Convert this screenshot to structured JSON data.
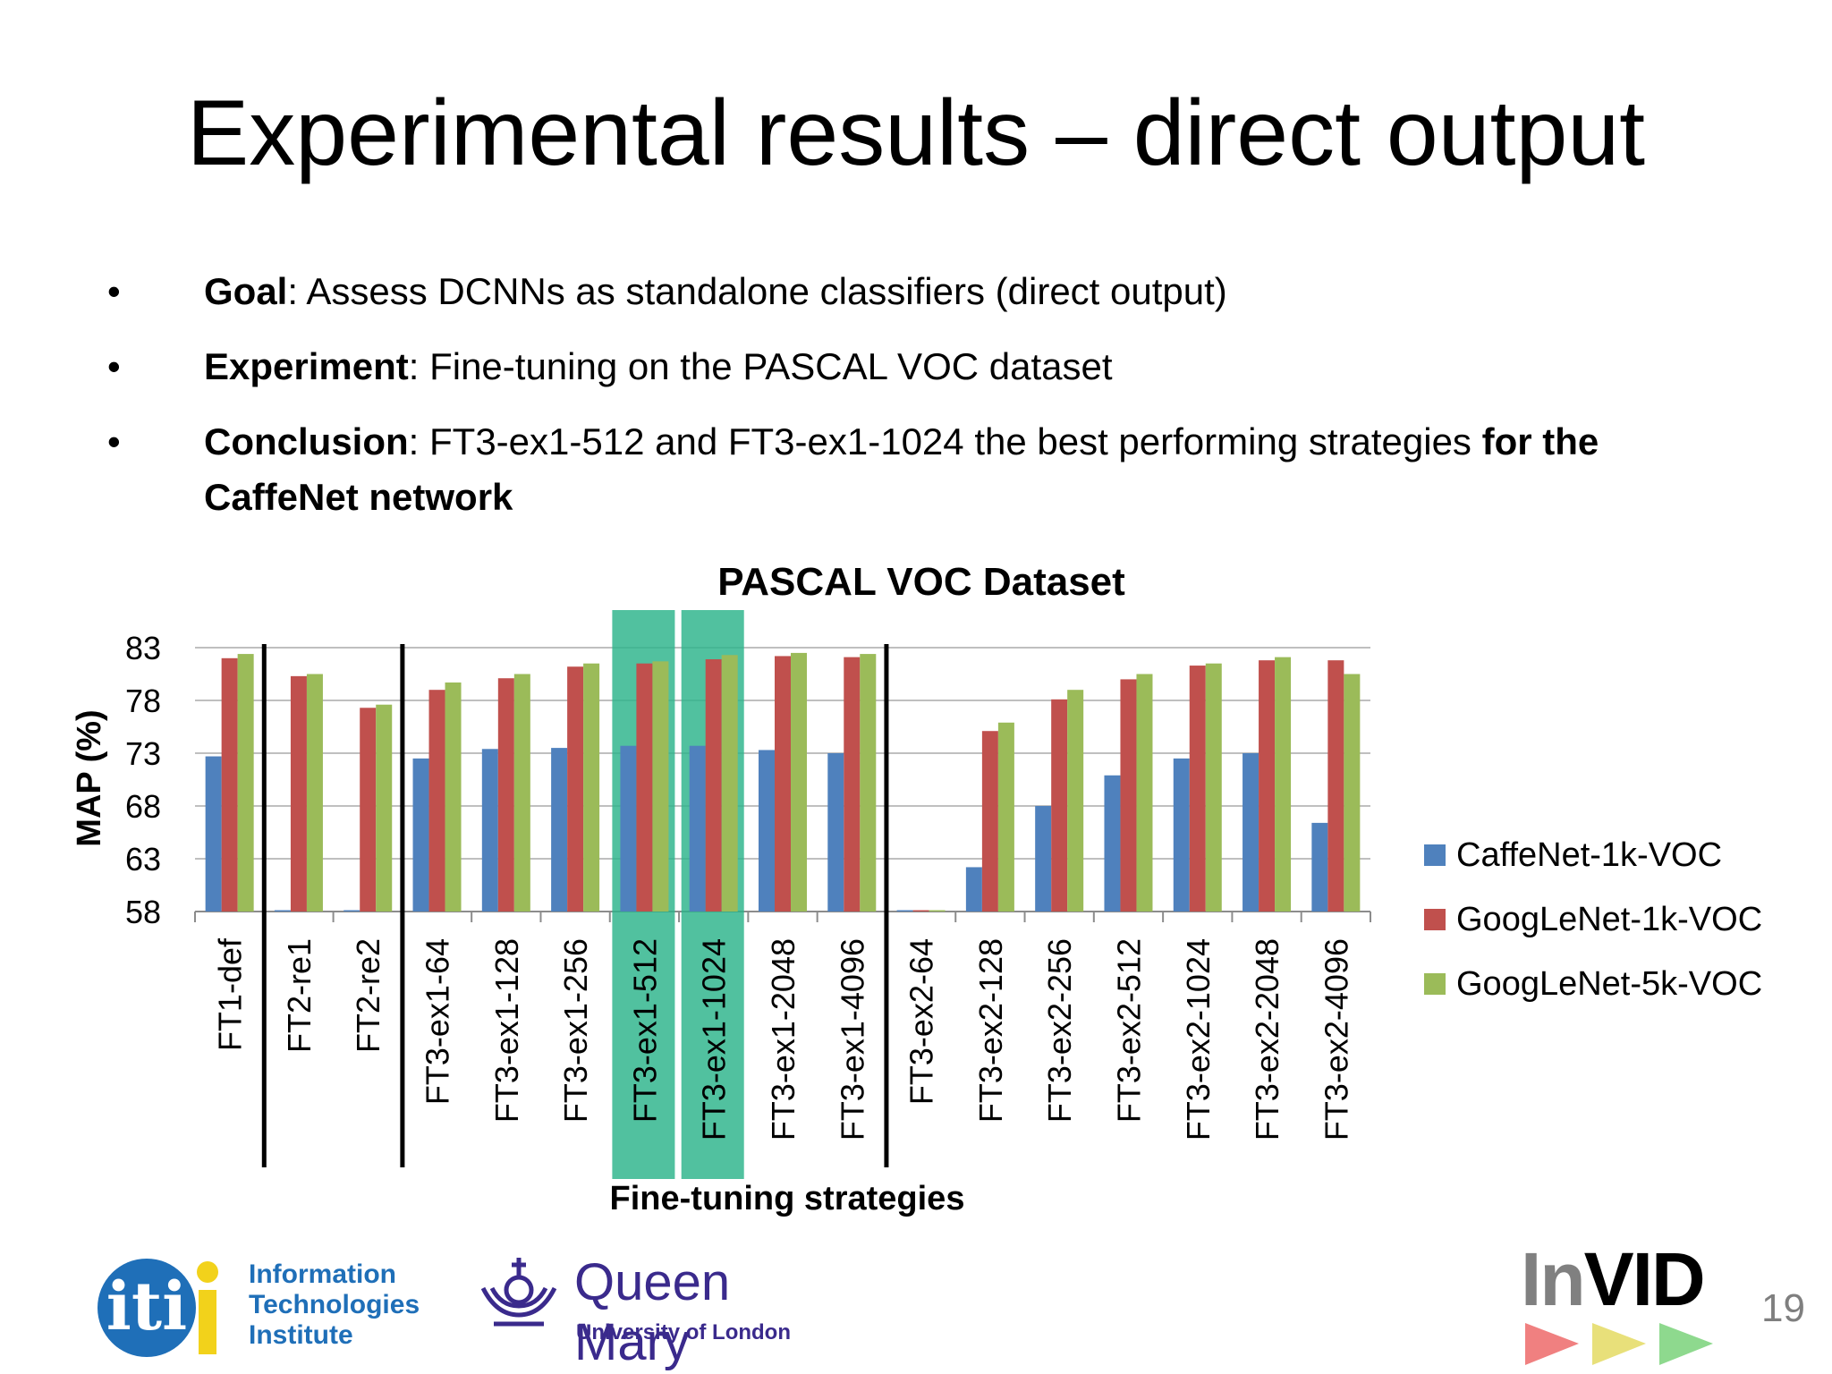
{
  "slide": {
    "title": "Experimental results – direct output",
    "bullets": [
      {
        "bold": "Goal",
        "text": ": Assess DCNNs as standalone classifiers (direct output)",
        "tail_bold": "",
        "line2_bold": ""
      },
      {
        "bold": "Experiment",
        "text": ": Fine-tuning on the PASCAL VOC dataset",
        "tail_bold": "",
        "line2_bold": ""
      },
      {
        "bold": "Conclusion",
        "text": ": FT3-ex1-512 and FT3-ex1-1024 the best performing strategies ",
        "tail_bold": "for the",
        "line2_bold": "CaffeNet network"
      }
    ],
    "bullet_char": "•",
    "page_number": "19"
  },
  "logos": {
    "iti": {
      "mark": "iti",
      "lines": [
        "Information",
        "Technologies",
        "Institute"
      ]
    },
    "qmul": {
      "name": "Queen Mary",
      "sub": "University of London"
    },
    "invid": {
      "text_in": "In",
      "text_vid": "VID"
    }
  },
  "colors": {
    "caffenet": "#4F81BD",
    "googlenet1k": "#C0504D",
    "googlenet5k": "#9BBB59",
    "highlight": "#2BB38A",
    "grid": "#BFBFBF",
    "page_number": "#7F7F7F",
    "iti_blue": "#1F6FB8",
    "iti_yellow": "#F2D21B",
    "qmul_purple": "#3A2A8C",
    "invid_gray": "#808080",
    "invid_red": "#F08080",
    "invid_yellow": "#E8E07A",
    "invid_green": "#8ED98E"
  },
  "chart_data": {
    "type": "bar",
    "title": "PASCAL VOC Dataset",
    "xlabel": "Fine-tuning strategies",
    "ylabel": "MAP (%)",
    "ylim": [
      58,
      83
    ],
    "yticks": [
      58,
      63,
      68,
      73,
      78,
      83
    ],
    "grid": true,
    "legend_position": "right",
    "categories": [
      "FT1-def",
      "FT2-re1",
      "FT2-re2",
      "FT3-ex1-64",
      "FT3-ex1-128",
      "FT3-ex1-256",
      "FT3-ex1-512",
      "FT3-ex1-1024",
      "FT3-ex1-2048",
      "FT3-ex1-4096",
      "FT3-ex2-64",
      "FT3-ex2-128",
      "FT3-ex2-256",
      "FT3-ex2-512",
      "FT3-ex2-1024",
      "FT3-ex2-2048",
      "FT3-ex2-4096"
    ],
    "series": [
      {
        "name": "CaffeNet-1k-VOC",
        "values": [
          72.7,
          58.0,
          58.0,
          72.5,
          73.4,
          73.5,
          73.7,
          73.7,
          73.3,
          73.0,
          58.0,
          62.2,
          68.0,
          70.9,
          72.5,
          73.0,
          66.4
        ]
      },
      {
        "name": "GoogLeNet-1k-VOC",
        "values": [
          82.0,
          80.3,
          77.3,
          79.0,
          80.1,
          81.2,
          81.5,
          81.9,
          82.2,
          82.1,
          58.0,
          75.1,
          78.1,
          80.0,
          81.3,
          81.8,
          81.8
        ]
      },
      {
        "name": "GoogLeNet-5k-VOC",
        "values": [
          82.4,
          80.5,
          77.6,
          79.7,
          80.5,
          81.5,
          81.7,
          82.3,
          82.5,
          82.4,
          58.0,
          75.9,
          79.0,
          80.5,
          81.5,
          82.1,
          80.5
        ]
      }
    ],
    "group_separators_after": [
      "FT1-def",
      "FT2-re2",
      "FT3-ex1-4096"
    ],
    "highlighted": [
      "FT3-ex1-512",
      "FT3-ex1-1024"
    ]
  }
}
